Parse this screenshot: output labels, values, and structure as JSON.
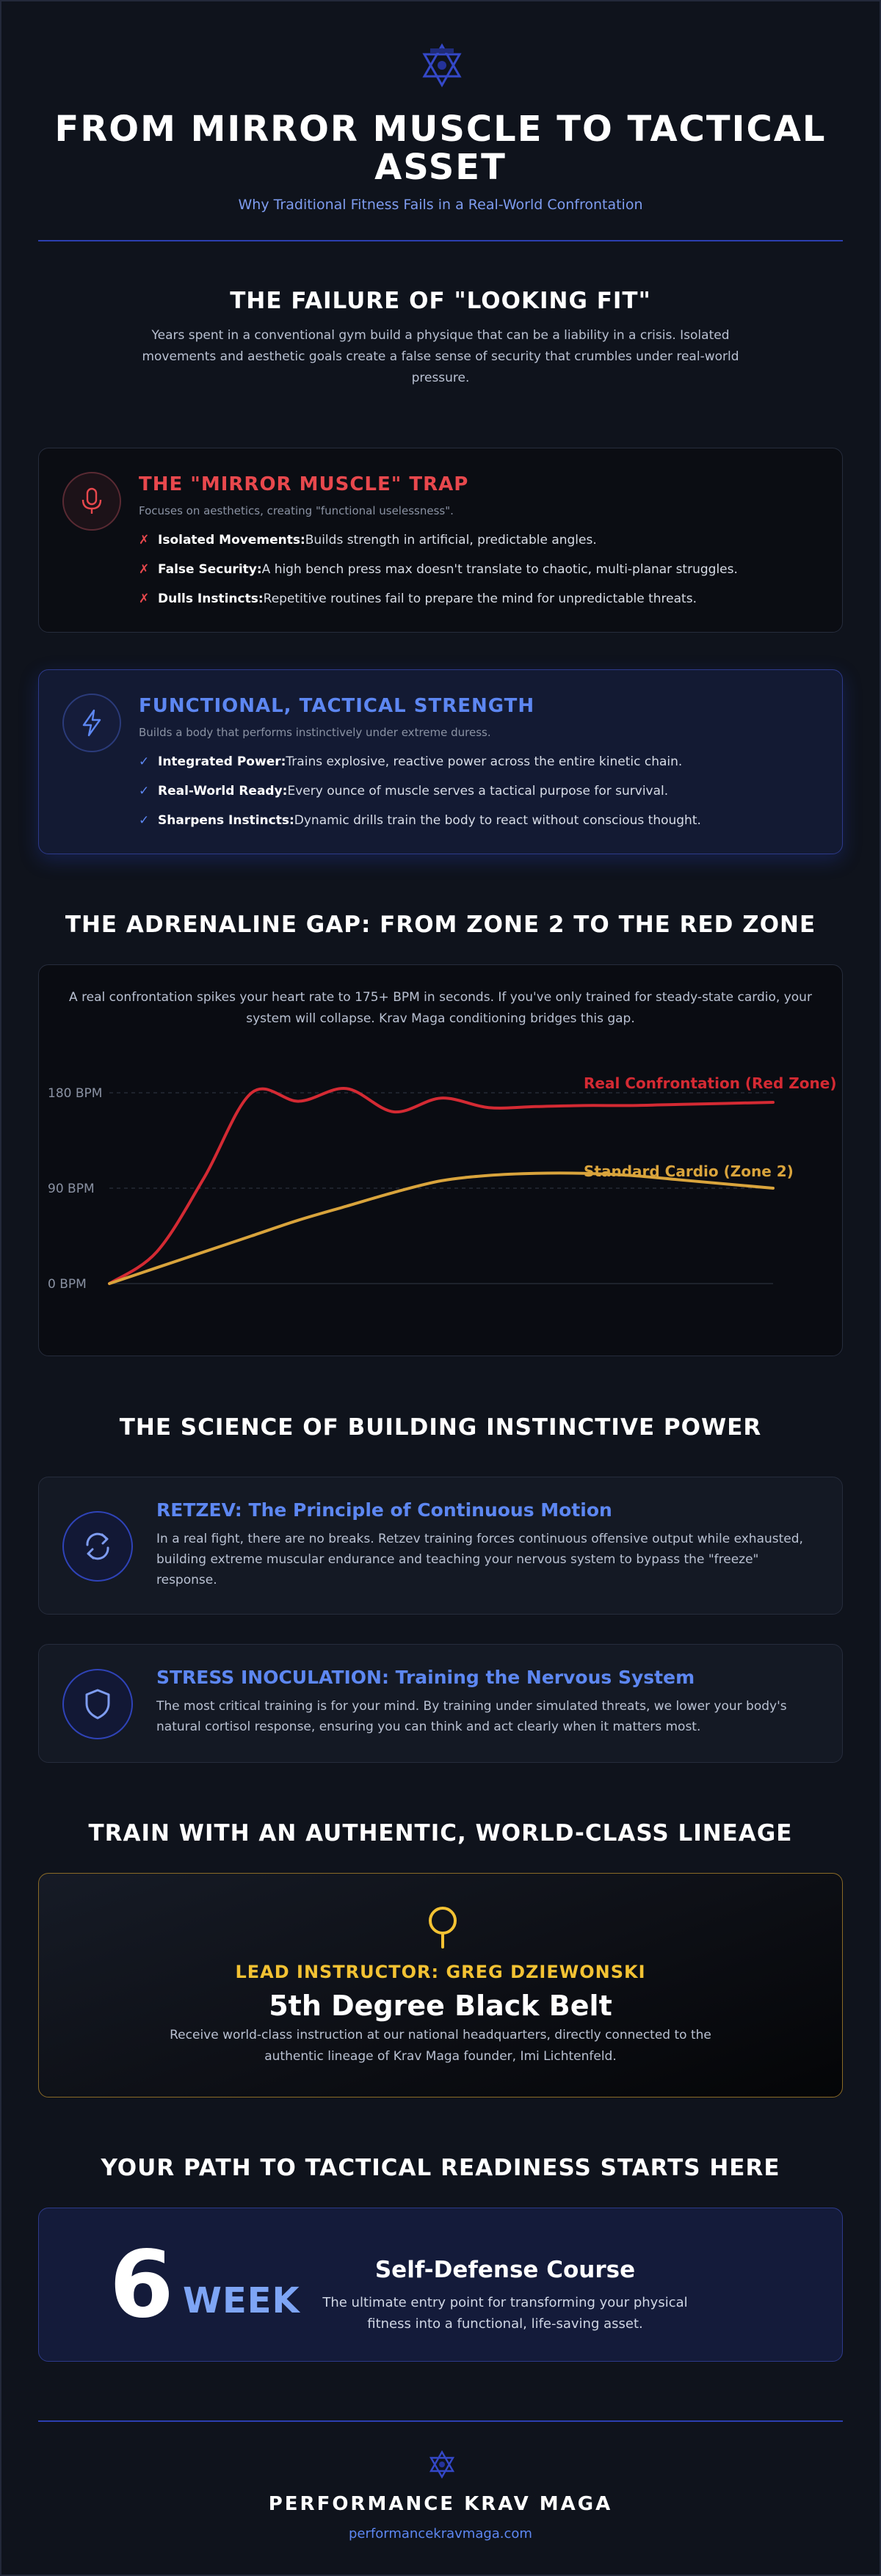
{
  "header": {
    "logo_icon": "star-of-david-logo-icon",
    "title": "FROM MIRROR MUSCLE TO TACTICAL ASSET",
    "subtitle": "Why Traditional Fitness Fails in a Real-World Confrontation"
  },
  "failure": {
    "heading": "THE FAILURE OF \"LOOKING FIT\"",
    "text": "Years spent in a conventional gym build a physique that can be a liability in a crisis. Isolated movements and aesthetic goals create a false sense of security that crumbles under real-world pressure."
  },
  "trap": {
    "icon": "microphone-icon",
    "title": "THE \"MIRROR MUSCLE\" TRAP",
    "subtitle": "Focuses on aesthetics, creating \"functional uselessness\".",
    "marker": "✗",
    "items": [
      {
        "label": "Isolated Movements:",
        "text": "Builds strength in artificial, predictable angles."
      },
      {
        "label": "False Security:",
        "text": "A high bench press max doesn't translate to chaotic, multi-planar struggles."
      },
      {
        "label": "Dulls Instincts:",
        "text": "Repetitive routines fail to prepare the mind for unpredictable threats."
      }
    ]
  },
  "tactical": {
    "icon": "lightning-bolt-icon",
    "title": "FUNCTIONAL, TACTICAL STRENGTH",
    "subtitle": "Builds a body that performs instinctively under extreme duress.",
    "marker": "✓",
    "items": [
      {
        "label": "Integrated Power:",
        "text": "Trains explosive, reactive power across the entire kinetic chain."
      },
      {
        "label": "Real-World Ready:",
        "text": "Every ounce of muscle serves a tactical purpose for survival."
      },
      {
        "label": "Sharpens Instincts:",
        "text": "Dynamic drills train the body to react without conscious thought."
      }
    ]
  },
  "adrenaline": {
    "heading": "THE ADRENALINE GAP: FROM ZONE 2 TO THE RED ZONE",
    "text": "A real confrontation spikes your heart rate to 175+ BPM in seconds. If you've only trained for steady-state cardio, your system will collapse. Krav Maga conditioning bridges this gap."
  },
  "chart_data": {
    "type": "line",
    "title": "",
    "xlabel": "",
    "ylabel": "",
    "y_ticks": [
      "0 BPM",
      "90 BPM",
      "180 BPM"
    ],
    "ylim": [
      0,
      180
    ],
    "x": [
      0,
      1,
      2,
      3,
      4,
      5,
      6,
      7,
      8,
      9,
      10,
      11,
      12,
      13,
      14
    ],
    "grid": "dashed-horizontal",
    "legend": "inline-right",
    "series": [
      {
        "name": "Real Confrontation (Red Zone)",
        "color": "#d42a33",
        "values": [
          0,
          30,
          100,
          180,
          172,
          184,
          162,
          175,
          166,
          167,
          168,
          168,
          169,
          170,
          171
        ]
      },
      {
        "name": "Standard Cardio (Zone 2)",
        "color": "#d9a43c",
        "values": [
          0,
          15,
          30,
          45,
          60,
          73,
          86,
          97,
          102,
          104,
          104,
          102,
          98,
          94,
          90
        ]
      }
    ]
  },
  "science": {
    "heading": "THE SCIENCE OF BUILDING INSTINCTIVE POWER",
    "cards": [
      {
        "icon": "continuous-arrows-icon",
        "title": "RETZEV: The Principle of Continuous Motion",
        "text": "In a real fight, there are no breaks. Retzev training forces continuous offensive output while exhausted, building extreme muscular endurance and teaching your nervous system to bypass the \"freeze\" response."
      },
      {
        "icon": "shield-icon",
        "title": "STRESS INOCULATION: Training the Nervous System",
        "text": "The most critical training is for your mind. By training under simulated threats, we lower your body's natural cortisol response, ensuring you can think and act clearly when it matters most."
      }
    ]
  },
  "lineage": {
    "heading": "TRAIN WITH AN AUTHENTIC, WORLD-CLASS LINEAGE",
    "icon": "map-pin-icon",
    "kicker": "LEAD INSTRUCTOR: GREG DZIEWONSKI",
    "rank": "5th Degree Black Belt",
    "text": "Receive world-class instruction at our national headquarters, directly connected to the authentic lineage of Krav Maga founder, Imi Lichtenfeld."
  },
  "path": {
    "heading": "YOUR PATH TO TACTICAL READINESS STARTS HERE",
    "number": "6",
    "unit": "WEEK",
    "title": "Self-Defense Course",
    "text": "The ultimate entry point for transforming your physical fitness into a functional, life-saving asset."
  },
  "footer": {
    "logo_icon": "star-of-david-logo-icon",
    "brand": "PERFORMANCE KRAV MAGA",
    "url": "performancekravmaga.com"
  },
  "colors": {
    "background": "#0f131c",
    "accent_blue": "#5d87f2",
    "accent_red": "#e8484d",
    "accent_gold": "#f3c233"
  }
}
